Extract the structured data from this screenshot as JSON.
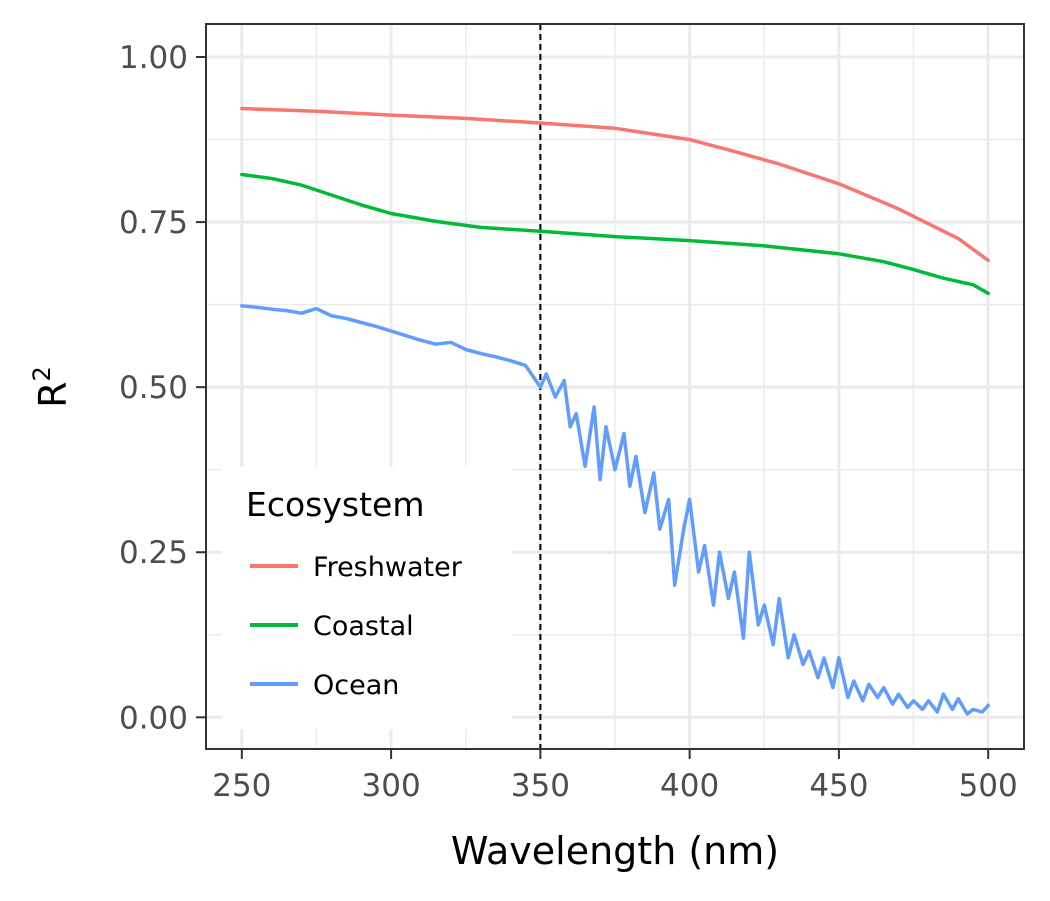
{
  "chart_data": {
    "type": "line",
    "xlabel": "Wavelength (nm)",
    "ylabel_base": "R",
    "ylabel_sup": "2",
    "xlim": [
      238,
      512
    ],
    "ylim": [
      -0.048,
      1.05
    ],
    "x_ticks": [
      250,
      300,
      350,
      400,
      450,
      500
    ],
    "x_tick_labels": [
      "250",
      "300",
      "350",
      "400",
      "450",
      "500"
    ],
    "y_ticks": [
      0,
      0.25,
      0.5,
      0.75,
      1.0
    ],
    "y_tick_labels": [
      "0.00",
      "0.25",
      "0.50",
      "0.75",
      "1.00"
    ],
    "grid": true,
    "reference_line": {
      "x": 350,
      "style": "dashed"
    },
    "legend": {
      "title": "Ecosystem",
      "position": "bottom-left"
    },
    "series": [
      {
        "name": "Freshwater",
        "color": "#F8766D",
        "x": [
          250,
          275,
          300,
          325,
          350,
          375,
          400,
          415,
          430,
          450,
          470,
          490,
          500
        ],
        "values": [
          0.922,
          0.918,
          0.912,
          0.907,
          0.9,
          0.892,
          0.875,
          0.857,
          0.838,
          0.808,
          0.77,
          0.725,
          0.692
        ]
      },
      {
        "name": "Coastal",
        "color": "#00BA38",
        "x": [
          250,
          260,
          270,
          280,
          290,
          300,
          315,
          330,
          350,
          375,
          400,
          425,
          450,
          465,
          475,
          485,
          495,
          500
        ],
        "values": [
          0.822,
          0.816,
          0.806,
          0.791,
          0.776,
          0.763,
          0.751,
          0.742,
          0.736,
          0.728,
          0.722,
          0.714,
          0.702,
          0.69,
          0.678,
          0.665,
          0.655,
          0.642
        ]
      },
      {
        "name": "Ocean",
        "color": "#619CFF",
        "x": [
          250,
          255,
          260,
          265,
          270,
          275,
          280,
          285,
          290,
          295,
          300,
          305,
          310,
          315,
          320,
          325,
          330,
          335,
          340,
          345,
          347,
          350,
          352,
          355,
          358,
          360,
          362,
          365,
          368,
          370,
          372,
          375,
          378,
          380,
          382,
          385,
          388,
          390,
          393,
          395,
          398,
          400,
          403,
          405,
          408,
          410,
          413,
          415,
          418,
          420,
          423,
          425,
          428,
          430,
          433,
          435,
          438,
          440,
          443,
          445,
          448,
          450,
          453,
          455,
          458,
          460,
          463,
          465,
          468,
          470,
          473,
          475,
          478,
          480,
          483,
          485,
          488,
          490,
          493,
          495,
          498,
          500
        ],
        "values": [
          0.623,
          0.621,
          0.618,
          0.616,
          0.612,
          0.619,
          0.608,
          0.604,
          0.598,
          0.592,
          0.585,
          0.578,
          0.571,
          0.565,
          0.568,
          0.557,
          0.551,
          0.546,
          0.54,
          0.533,
          0.52,
          0.5,
          0.52,
          0.485,
          0.51,
          0.44,
          0.46,
          0.38,
          0.47,
          0.36,
          0.44,
          0.375,
          0.43,
          0.35,
          0.395,
          0.31,
          0.37,
          0.285,
          0.33,
          0.2,
          0.285,
          0.33,
          0.22,
          0.26,
          0.17,
          0.25,
          0.18,
          0.22,
          0.12,
          0.25,
          0.14,
          0.17,
          0.11,
          0.18,
          0.09,
          0.125,
          0.08,
          0.1,
          0.06,
          0.09,
          0.045,
          0.09,
          0.03,
          0.055,
          0.025,
          0.05,
          0.03,
          0.045,
          0.02,
          0.035,
          0.015,
          0.025,
          0.012,
          0.025,
          0.008,
          0.035,
          0.012,
          0.028,
          0.005,
          0.012,
          0.008,
          0.018
        ]
      }
    ]
  }
}
